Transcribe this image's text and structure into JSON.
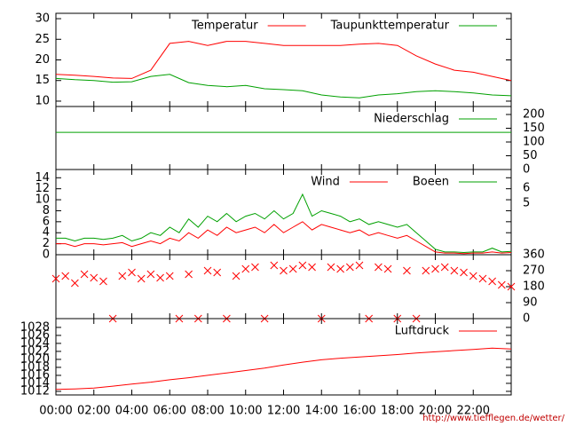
{
  "chart_data": [
    {
      "type": "line",
      "x": [
        0,
        1,
        2,
        3,
        4,
        5,
        6,
        7,
        8,
        9,
        10,
        11,
        12,
        13,
        14,
        15,
        16,
        17,
        18,
        19,
        20,
        21,
        22,
        23,
        24
      ],
      "xlim": [
        0,
        24
      ],
      "ylim": [
        8.7,
        31.3
      ],
      "yticks": [
        10,
        15,
        20,
        25,
        30
      ],
      "series": [
        {
          "name": "Temperatur",
          "color": "#ff0000",
          "values": [
            16.5,
            16.3,
            16,
            15.6,
            15.5,
            17.5,
            24,
            24.5,
            23.5,
            24.5,
            24.5,
            24,
            23.5,
            23.5,
            23.5,
            23.5,
            23.8,
            24,
            23.5,
            21,
            19,
            17.5,
            17,
            16,
            15
          ]
        },
        {
          "name": "Taupunkttemperatur",
          "color": "#00a000",
          "values": [
            15.5,
            15.2,
            15,
            14.6,
            14.7,
            16,
            16.5,
            14.5,
            13.8,
            13.5,
            13.8,
            13,
            12.8,
            12.5,
            11.5,
            11,
            10.8,
            11.5,
            11.8,
            12.3,
            12.5,
            12.3,
            12,
            11.5,
            11.3
          ]
        }
      ]
    },
    {
      "type": "line",
      "x": [
        0,
        24
      ],
      "xlim": [
        0,
        24
      ],
      "y2lim": [
        0,
        229
      ],
      "y2ticks": [
        0,
        50,
        100,
        150,
        200
      ],
      "series": [
        {
          "name": "Niederschlag",
          "color": "#00a000",
          "axis": "y2",
          "values": [
            135,
            135
          ]
        }
      ]
    },
    {
      "type": "line",
      "x": [
        0,
        0.5,
        1,
        1.5,
        2,
        2.5,
        3,
        3.5,
        4,
        4.5,
        5,
        5.5,
        6,
        6.5,
        7,
        7.5,
        8,
        8.5,
        9,
        9.5,
        10,
        10.5,
        11,
        11.5,
        12,
        12.5,
        13,
        13.5,
        14,
        14.5,
        15,
        15.5,
        16,
        16.5,
        17,
        17.5,
        18,
        18.5,
        19,
        19.5,
        20,
        20.5,
        21,
        21.5,
        22,
        22.5,
        23,
        23.5,
        24
      ],
      "xlim": [
        0,
        24
      ],
      "ylim": [
        0,
        15.5
      ],
      "yticks": [
        0,
        2,
        4,
        6,
        8,
        10,
        12,
        14
      ],
      "beaufort_ticks": [
        {
          "label": "5",
          "at": 9.4
        },
        {
          "label": "6",
          "at": 12.1
        }
      ],
      "series": [
        {
          "name": "Wind",
          "color": "#ff0000",
          "values": [
            2,
            2,
            1.5,
            2,
            2,
            1.8,
            2,
            2.2,
            1.5,
            2,
            2.5,
            2,
            3,
            2.5,
            4,
            3,
            4.5,
            3.5,
            5,
            4,
            4.5,
            5,
            4,
            5.5,
            4,
            5,
            6,
            4.5,
            5.5,
            5,
            4.5,
            4,
            4.5,
            3.5,
            4,
            3.5,
            3,
            3.5,
            2.5,
            1.5,
            0.5,
            0.3,
            0.3,
            0.2,
            0.3,
            0.3,
            0.5,
            0.3,
            0.4
          ]
        },
        {
          "name": "Boeen",
          "color": "#00a000",
          "values": [
            3,
            3,
            2.5,
            3,
            3,
            2.8,
            3,
            3.5,
            2.5,
            3,
            4,
            3.5,
            5,
            4,
            6.5,
            5,
            7,
            6,
            7.5,
            6,
            7,
            7.5,
            6.5,
            8,
            6.5,
            7.5,
            11,
            7,
            8,
            7.5,
            7,
            6,
            6.5,
            5.5,
            6,
            5.5,
            5,
            5.5,
            4,
            2.5,
            1,
            0.5,
            0.5,
            0.4,
            0.5,
            0.5,
            1.2,
            0.5,
            0.6
          ]
        }
      ]
    },
    {
      "type": "scatter",
      "x": [
        0,
        0.5,
        1,
        1.5,
        2,
        2.5,
        3,
        3.5,
        4,
        4.5,
        5,
        5.5,
        6,
        6.5,
        7,
        7.5,
        8,
        8.5,
        9,
        9.5,
        10,
        10.5,
        11,
        11.5,
        12,
        12.5,
        13,
        13.5,
        14,
        14.5,
        15,
        15.5,
        16,
        16.5,
        17,
        17.5,
        18,
        18.5,
        19,
        19.5,
        20,
        20.5,
        21,
        21.5,
        22,
        22.5,
        23,
        23.5,
        24
      ],
      "xlim": [
        0,
        24
      ],
      "y2lim": [
        0,
        360
      ],
      "y2ticks": [
        0,
        90,
        180,
        270,
        360
      ],
      "series": [
        {
          "color": "#ff0000",
          "axis": "y2",
          "values": [
            225,
            240,
            200,
            250,
            230,
            210,
            0,
            240,
            260,
            225,
            250,
            230,
            240,
            0,
            250,
            0,
            270,
            260,
            0,
            240,
            280,
            290,
            0,
            300,
            270,
            280,
            300,
            290,
            0,
            290,
            280,
            290,
            300,
            0,
            290,
            280,
            0,
            270,
            0,
            270,
            280,
            290,
            270,
            260,
            240,
            225,
            210,
            190,
            180
          ]
        }
      ]
    },
    {
      "type": "line",
      "x": [
        0,
        1,
        2,
        3,
        4,
        5,
        6,
        7,
        8,
        9,
        10,
        11,
        12,
        13,
        14,
        15,
        16,
        17,
        18,
        19,
        20,
        21,
        22,
        23,
        24
      ],
      "xlim": [
        0,
        24
      ],
      "ylim": [
        1011.1,
        1030.2
      ],
      "yticks": [
        1012,
        1014,
        1016,
        1018,
        1020,
        1022,
        1024,
        1026,
        1028
      ],
      "xticks": [
        {
          "value": 0,
          "label": "00:00"
        },
        {
          "value": 2,
          "label": "02:00"
        },
        {
          "value": 4,
          "label": "04:00"
        },
        {
          "value": 6,
          "label": "06:00"
        },
        {
          "value": 8,
          "label": "08:00"
        },
        {
          "value": 10,
          "label": "10:00"
        },
        {
          "value": 12,
          "label": "12:00"
        },
        {
          "value": 14,
          "label": "14:00"
        },
        {
          "value": 16,
          "label": "16:00"
        },
        {
          "value": 18,
          "label": "18:00"
        },
        {
          "value": 20,
          "label": "20:00"
        },
        {
          "value": 22,
          "label": "22:00"
        }
      ],
      "series": [
        {
          "name": "Luftdruck",
          "color": "#ff0000",
          "values": [
            1012.5,
            1012.6,
            1012.8,
            1013.3,
            1013.8,
            1014.3,
            1014.9,
            1015.4,
            1016,
            1016.6,
            1017.2,
            1017.8,
            1018.6,
            1019.3,
            1019.9,
            1020.3,
            1020.6,
            1020.9,
            1021.2,
            1021.6,
            1021.9,
            1022.2,
            1022.5,
            1022.8,
            1022.6
          ]
        }
      ]
    }
  ],
  "footer": "http://www.tiefflegen.de/wetter/"
}
